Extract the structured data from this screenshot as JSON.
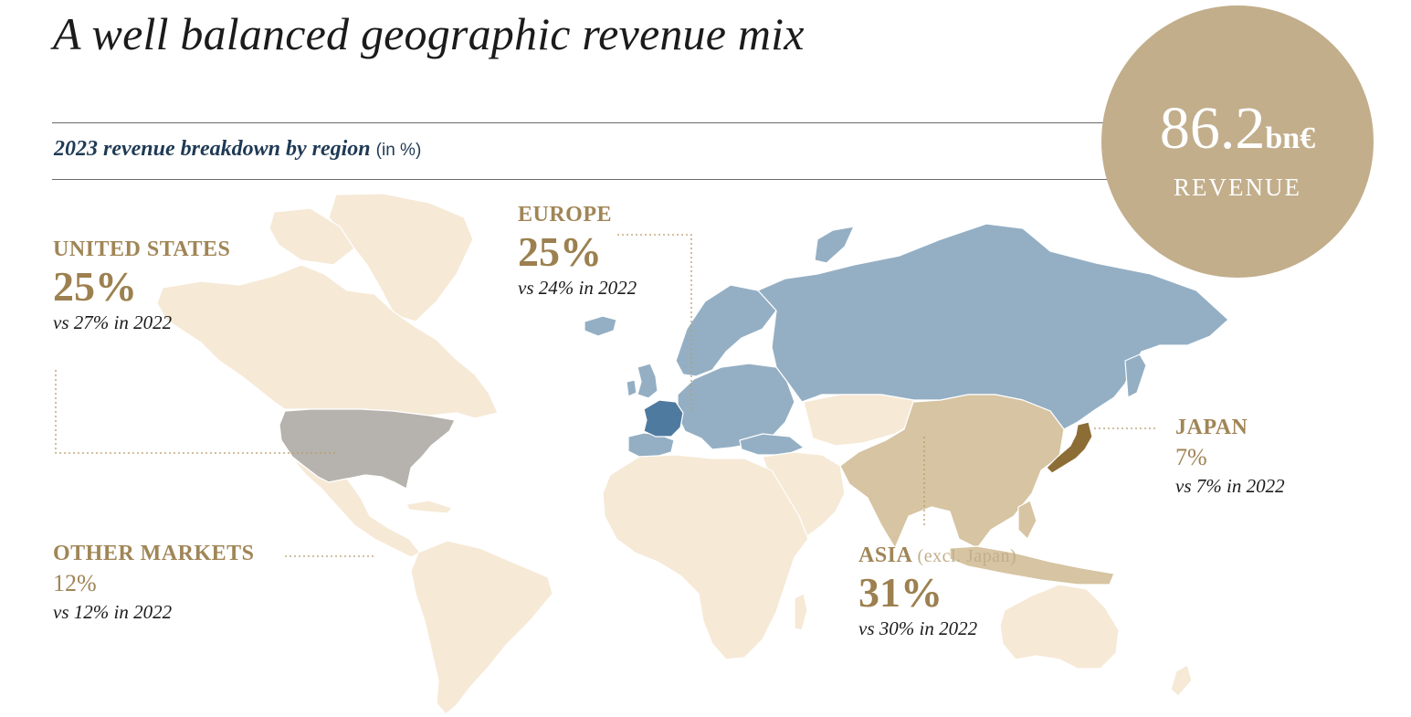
{
  "title": "A well balanced geographic revenue mix",
  "subtitle": {
    "text": "2023 revenue breakdown by region",
    "unit": "(in %)"
  },
  "badge": {
    "value": "86.2",
    "suffix": "bn€",
    "label": "REVENUE"
  },
  "colors": {
    "europe": "#94afc4",
    "france": "#4f7aa0",
    "united_states": "#b6b2ad",
    "asia": "#d6c4a2",
    "japan": "#8c6d35",
    "other": "#f6e9d6",
    "accent": "#a08556"
  },
  "regions": {
    "united_states": {
      "name": "UNITED STATES",
      "pct": "25%",
      "comparison": "vs 27% in 2022",
      "share": 25
    },
    "europe": {
      "name": "EUROPE",
      "pct": "25%",
      "comparison": "vs 24% in 2022",
      "share": 25
    },
    "japan": {
      "name": "JAPAN",
      "pct": "7%",
      "comparison": "vs 7% in 2022",
      "share": 7
    },
    "other_markets": {
      "name": "OTHER MARKETS",
      "pct": "12%",
      "comparison": "vs 12% in 2022",
      "share": 12
    },
    "asia": {
      "name": "ASIA",
      "note": "(excl. Japan)",
      "pct": "31%",
      "comparison": "vs 30% in 2022",
      "share": 31
    }
  }
}
